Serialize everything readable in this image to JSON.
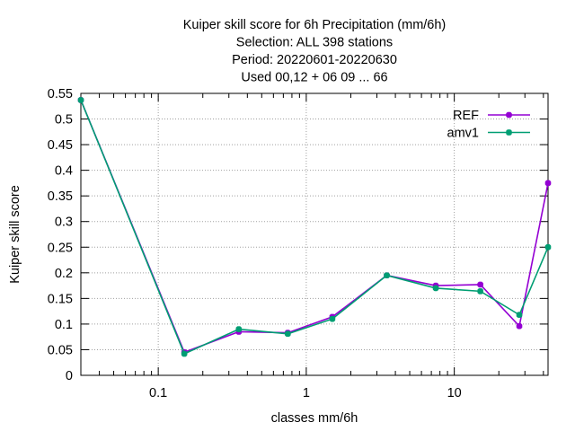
{
  "chart_data": {
    "type": "line",
    "title_lines": [
      "Kuiper skill score  for 6h Precipitation (mm/6h)",
      "Selection: ALL     398 stations",
      "Period: 20220601-20220630",
      "Used  00,12  + 06 09 ... 66"
    ],
    "xlabel": "classes mm/6h",
    "ylabel": "Kuiper skill score",
    "x_scale": "log",
    "xlim": [
      0.03,
      43
    ],
    "ylim": [
      0,
      0.55
    ],
    "x_ticks": [
      {
        "value": 0.1,
        "label": "0.1"
      },
      {
        "value": 1,
        "label": "1"
      },
      {
        "value": 10,
        "label": "10"
      }
    ],
    "y_ticks": [
      {
        "value": 0,
        "label": "0"
      },
      {
        "value": 0.05,
        "label": "0.05"
      },
      {
        "value": 0.1,
        "label": "0.1"
      },
      {
        "value": 0.15,
        "label": "0.15"
      },
      {
        "value": 0.2,
        "label": "0.2"
      },
      {
        "value": 0.25,
        "label": "0.25"
      },
      {
        "value": 0.3,
        "label": "0.3"
      },
      {
        "value": 0.35,
        "label": "0.35"
      },
      {
        "value": 0.4,
        "label": "0.4"
      },
      {
        "value": 0.45,
        "label": "0.45"
      },
      {
        "value": 0.5,
        "label": "0.5"
      },
      {
        "value": 0.55,
        "label": "0.55"
      }
    ],
    "grid": true,
    "legend_position": "top-right",
    "x": [
      0.03,
      0.15,
      0.35,
      0.75,
      1.5,
      3.5,
      7.5,
      15,
      27.5,
      43
    ],
    "series": [
      {
        "name": "REF",
        "color": "#9400d3",
        "values": [
          0.537,
          0.045,
          0.085,
          0.083,
          0.114,
          0.195,
          0.175,
          0.177,
          0.096,
          0.375
        ]
      },
      {
        "name": "amv1",
        "color": "#009e73",
        "values": [
          0.537,
          0.042,
          0.09,
          0.081,
          0.11,
          0.195,
          0.17,
          0.164,
          0.118,
          0.25
        ]
      }
    ]
  }
}
